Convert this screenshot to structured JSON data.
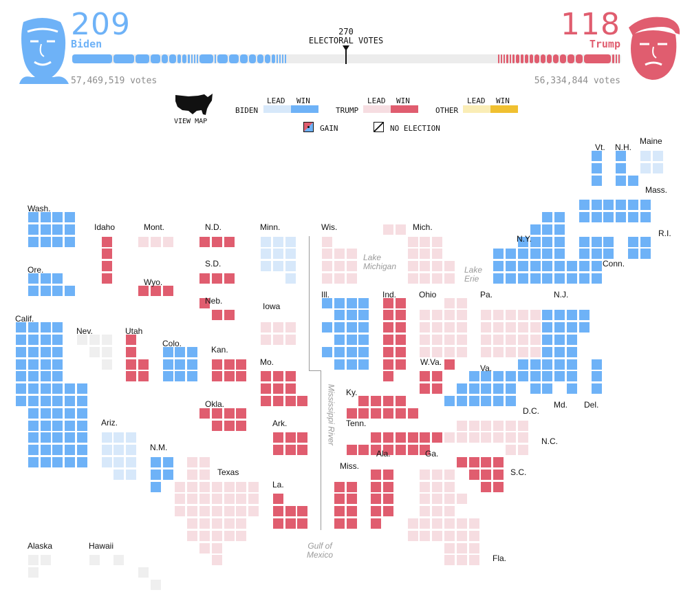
{
  "header": {
    "biden": {
      "name": "Biden",
      "electoral_votes": "209",
      "popular_votes": "57,469,519 votes"
    },
    "trump": {
      "name": "Trump",
      "electoral_votes": "118",
      "popular_votes": "56,334,844 votes"
    },
    "threshold_number": "270",
    "threshold_label": "ELECTORAL VOTES"
  },
  "legend": {
    "view_map": "VIEW MAP",
    "lead": "LEAD",
    "win": "WIN",
    "biden": "BIDEN",
    "trump": "TRUMP",
    "other": "OTHER",
    "gain": "GAIN",
    "no_election": "NO ELECTION"
  },
  "colors": {
    "biden_win": "#6eb2f7",
    "biden_lead": "#d7e8fa",
    "trump_win": "#e05d6f",
    "trump_lead": "#f6dde1",
    "other_win": "#f0c030",
    "other_lead": "#faedb6",
    "no_election": "#efefef"
  },
  "states": [
    {
      "abbr": "Wash.",
      "status": "biden_win"
    },
    {
      "abbr": "Ore.",
      "status": "biden_win"
    },
    {
      "abbr": "Calif.",
      "status": "biden_win"
    },
    {
      "abbr": "Idaho",
      "status": "trump_win"
    },
    {
      "abbr": "Nev.",
      "status": "none"
    },
    {
      "abbr": "Utah",
      "status": "trump_win"
    },
    {
      "abbr": "Ariz.",
      "status": "biden_lead"
    },
    {
      "abbr": "Mont.",
      "status": "trump_lead"
    },
    {
      "abbr": "Wyo.",
      "status": "trump_win"
    },
    {
      "abbr": "Colo.",
      "status": "biden_win"
    },
    {
      "abbr": "N.M.",
      "status": "biden_win"
    },
    {
      "abbr": "N.D.",
      "status": "trump_win"
    },
    {
      "abbr": "S.D.",
      "status": "trump_win"
    },
    {
      "abbr": "Neb.",
      "status": "trump_win"
    },
    {
      "abbr": "Kan.",
      "status": "trump_win"
    },
    {
      "abbr": "Okla.",
      "status": "trump_win"
    },
    {
      "abbr": "Texas",
      "status": "trump_lead"
    },
    {
      "abbr": "Minn.",
      "status": "biden_lead"
    },
    {
      "abbr": "Iowa",
      "status": "trump_lead"
    },
    {
      "abbr": "Mo.",
      "status": "trump_win"
    },
    {
      "abbr": "Ark.",
      "status": "trump_win"
    },
    {
      "abbr": "La.",
      "status": "trump_win"
    },
    {
      "abbr": "Wis.",
      "status": "trump_lead"
    },
    {
      "abbr": "Ill.",
      "status": "biden_win"
    },
    {
      "abbr": "Mich.",
      "status": "trump_lead"
    },
    {
      "abbr": "Ind.",
      "status": "trump_win"
    },
    {
      "abbr": "Ohio",
      "status": "trump_lead"
    },
    {
      "abbr": "Ky.",
      "status": "trump_win"
    },
    {
      "abbr": "Tenn.",
      "status": "trump_win"
    },
    {
      "abbr": "Miss.",
      "status": "trump_win"
    },
    {
      "abbr": "Ala.",
      "status": "trump_win"
    },
    {
      "abbr": "Ga.",
      "status": "trump_lead"
    },
    {
      "abbr": "Fla.",
      "status": "trump_lead"
    },
    {
      "abbr": "S.C.",
      "status": "trump_win"
    },
    {
      "abbr": "N.C.",
      "status": "trump_lead"
    },
    {
      "abbr": "Va.",
      "status": "biden_win"
    },
    {
      "abbr": "W.Va.",
      "status": "trump_win"
    },
    {
      "abbr": "Pa.",
      "status": "trump_lead"
    },
    {
      "abbr": "N.Y.",
      "status": "biden_win"
    },
    {
      "abbr": "N.J.",
      "status": "biden_win"
    },
    {
      "abbr": "Md.",
      "status": "biden_win"
    },
    {
      "abbr": "Del.",
      "status": "biden_win"
    },
    {
      "abbr": "D.C.",
      "status": "biden_win"
    },
    {
      "abbr": "Conn.",
      "status": "biden_win"
    },
    {
      "abbr": "R.I.",
      "status": "biden_win"
    },
    {
      "abbr": "Mass.",
      "status": "biden_win"
    },
    {
      "abbr": "Vt.",
      "status": "biden_win"
    },
    {
      "abbr": "N.H.",
      "status": "biden_win"
    },
    {
      "abbr": "Maine",
      "status": "biden_lead"
    },
    {
      "abbr": "Alaska",
      "status": "none"
    },
    {
      "abbr": "Hawaii",
      "status": "none"
    }
  ],
  "geography": {
    "lake_michigan_1": "Lake",
    "lake_michigan_2": "Michigan",
    "lake_erie_1": "Lake",
    "lake_erie_2": "Erie",
    "river": "Mississippi River",
    "gulf_1": "Gulf of",
    "gulf_2": "Mexico"
  }
}
